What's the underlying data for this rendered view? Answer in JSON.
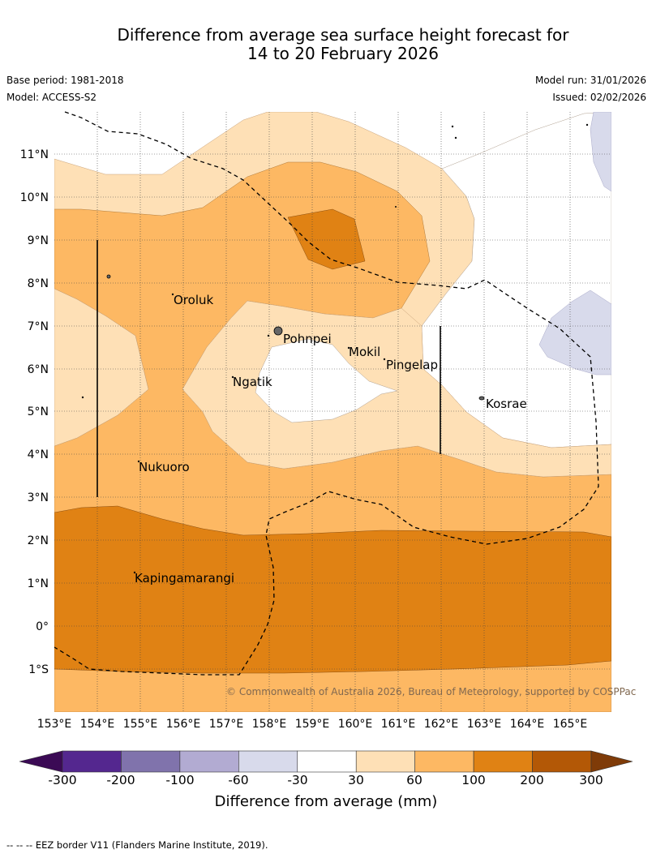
{
  "title_line1": "Difference from average sea surface height forecast for",
  "title_line2": "14 to 20 February 2026",
  "base_period": "Base period: 1981-2018",
  "model": "Model: ACCESS-S2",
  "model_run": "Model run: 31/01/2026",
  "issued": "Issued: 02/02/2026",
  "copyright": "© Commonwealth of Australia 2026, Bureau of Meteorology, supported by COSPPac",
  "lat_labels": [
    "11°N",
    "10°N",
    "9°N",
    "8°N",
    "7°N",
    "6°N",
    "5°N",
    "4°N",
    "3°N",
    "2°N",
    "1°N",
    "0°",
    "1°S"
  ],
  "lon_labels": [
    "153°E",
    "154°E",
    "155°E",
    "156°E",
    "157°E",
    "158°E",
    "159°E",
    "160°E",
    "161°E",
    "162°E",
    "163°E",
    "164°E",
    "165°E"
  ],
  "places": {
    "oroluk": "Oroluk",
    "pohnpei": "Pohnpei",
    "mokil": "Mokil",
    "pingelap": "Pingelap",
    "ngatik": "Ngatik",
    "kosrae": "Kosrae",
    "nukuoro": "Nukuoro",
    "kapingamarangi": "Kapingamarangi"
  },
  "legend": {
    "ticks": [
      "-300",
      "-200",
      "-100",
      "-60",
      "-30",
      "30",
      "60",
      "100",
      "200",
      "300"
    ],
    "title": "Difference from average (mm)",
    "colors": [
      "#3b0a55",
      "#54278f",
      "#8073ac",
      "#b2abd2",
      "#d8daeb",
      "#ffffff",
      "#fee0b6",
      "#fdb863",
      "#e08214",
      "#b35806",
      "#7f3b08"
    ]
  },
  "footer": "--  --  -- EEZ border V11 (Flanders Marine Institute, 2019)."
}
